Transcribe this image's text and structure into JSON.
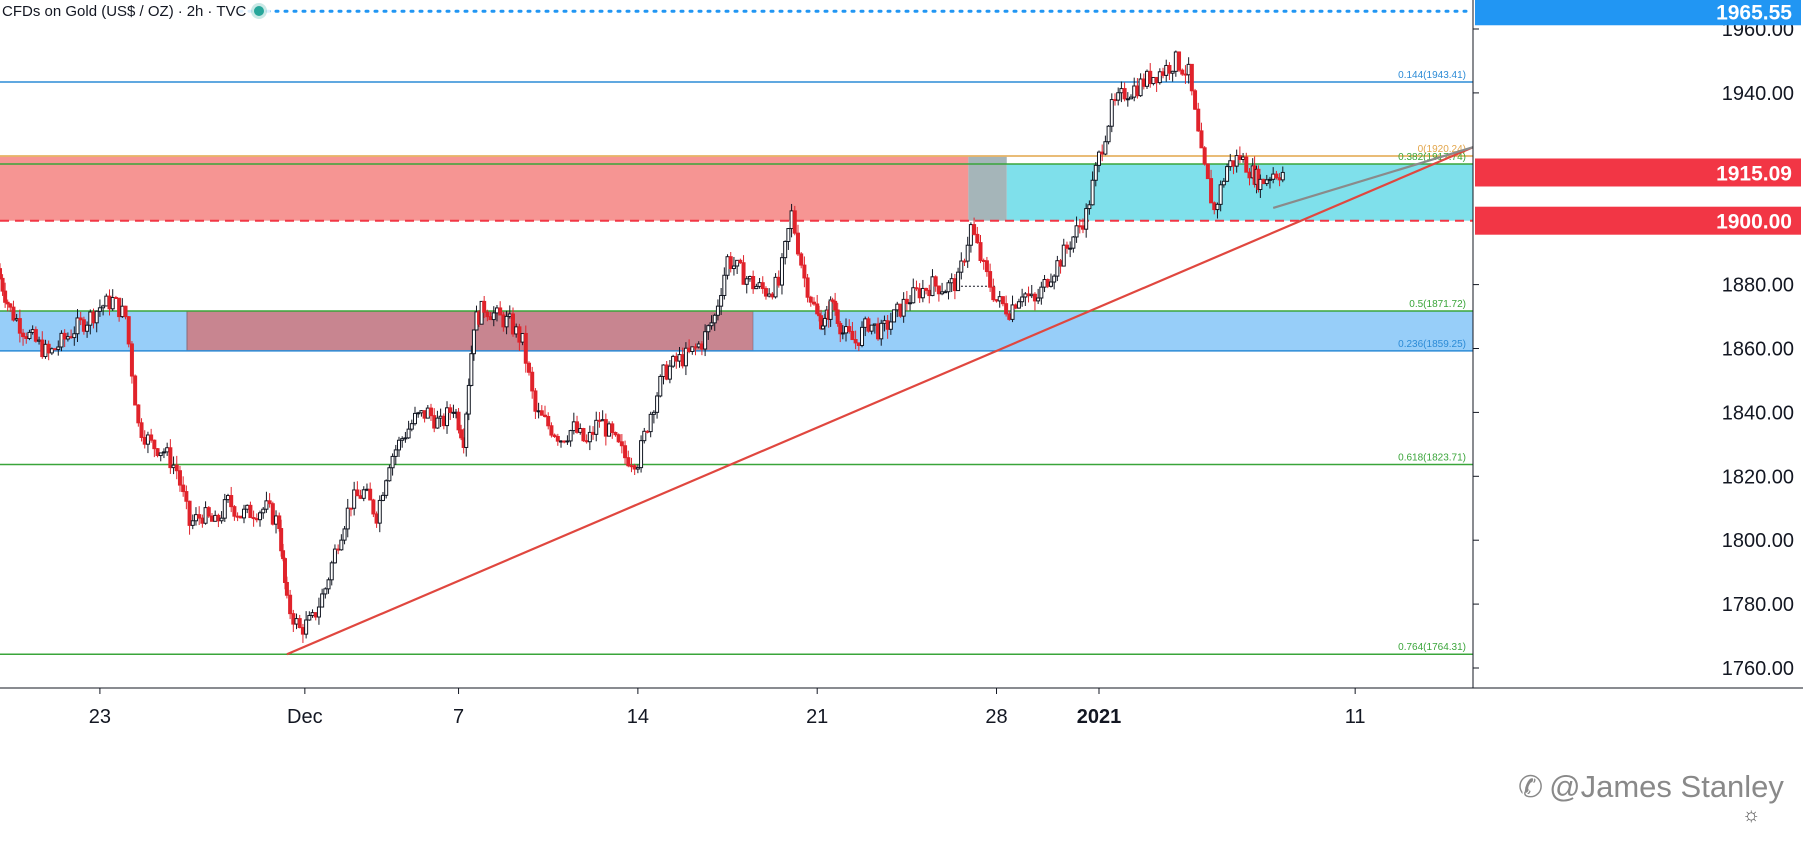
{
  "header": {
    "symbol": "CFDs on Gold (US$ / OZ)",
    "interval": "2h",
    "source": "TVC"
  },
  "watermark": {
    "text": "@James Stanley",
    "icon": "twitter-icon"
  },
  "settings_icon": "gear-icon",
  "colors": {
    "candle_up": "#131722",
    "candle_down": "#e0232b",
    "trendline": "#e0473f",
    "resistance_zone": "#f47a78",
    "support_zone": "#7dc2f7",
    "upper_zone_cyan": "#5fd8e6",
    "fib_green": "#3aa53a",
    "fib_blue": "#2c8bd6",
    "price_label_red": "#f23645",
    "price_label_blue": "#2196f3"
  },
  "chart_data": {
    "type": "candlestick",
    "title": "CFDs on Gold (US$ / OZ) · 2h · TVC",
    "ylim": [
      1760,
      1970
    ],
    "y_ticks": [
      "1760.00",
      "1780.00",
      "1800.00",
      "1820.00",
      "1840.00",
      "1860.00",
      "1880.00",
      "1900.00",
      "1915.09",
      "1940.00",
      "1960.00",
      "1965.55"
    ],
    "x_ticks": [
      {
        "label": "23",
        "day": 0
      },
      {
        "label": "Dec",
        "day": 8
      },
      {
        "label": "7",
        "day": 14
      },
      {
        "label": "14",
        "day": 21
      },
      {
        "label": "21",
        "day": 28
      },
      {
        "label": "28",
        "day": 35
      },
      {
        "label": "2021",
        "day": 39
      },
      {
        "label": "11",
        "day": 49
      }
    ],
    "x_range_days": [
      -3.9,
      53.6
    ],
    "price_labels": [
      {
        "value": "1965.55",
        "price": 1965.55,
        "color": "#2196f3",
        "kind": "dotted"
      },
      {
        "value": "1915.09",
        "price": 1915.09,
        "color": "#f23645",
        "kind": "last"
      },
      {
        "value": "1900.00",
        "price": 1900.0,
        "color": "#f23645",
        "kind": "dashed"
      }
    ],
    "fib_levels": [
      {
        "label": "0.144(1943.41)",
        "price": 1943.41,
        "color": "#2c8bd6"
      },
      {
        "label": "0(1920.24)",
        "price": 1920.24,
        "color": "#e2a54a"
      },
      {
        "label": "0.382(1917.74)",
        "price": 1917.74,
        "color": "#3aa53a"
      },
      {
        "label": "0.5(1871.72)",
        "price": 1871.72,
        "color": "#3aa53a"
      },
      {
        "label": "0.236(1859.25)",
        "price": 1859.25,
        "color": "#2c8bd6"
      },
      {
        "label": "0.618(1823.71)",
        "price": 1823.71,
        "color": "#3aa53a"
      },
      {
        "label": "0.764(1764.31)",
        "price": 1764.31,
        "color": "#3aa53a"
      }
    ],
    "zones": [
      {
        "name": "resistance",
        "from_day": -3.9,
        "to_day": 33.9,
        "low": 1900.0,
        "high": 1920.0,
        "color": "#f47a78"
      },
      {
        "name": "resistance-overlap",
        "from_day": 33.9,
        "to_day": 35.4,
        "low": 1900.0,
        "high": 1920.0,
        "color": "#8fa3a8"
      },
      {
        "name": "support-high",
        "from_day": 35.4,
        "to_day": 53.6,
        "low": 1900.0,
        "high": 1917.74,
        "color": "#5fd8e6"
      },
      {
        "name": "support-left",
        "from_day": -3.9,
        "to_day": 3.4,
        "low": 1859.25,
        "high": 1871.72,
        "color": "#7dc2f7"
      },
      {
        "name": "support-mid",
        "from_day": 3.4,
        "to_day": 25.5,
        "low": 1859.25,
        "high": 1871.72,
        "color": "#c57e8a"
      },
      {
        "name": "support-right",
        "from_day": 25.5,
        "to_day": 53.6,
        "low": 1859.25,
        "high": 1871.72,
        "color": "#7dc2f7"
      }
    ],
    "trendline": {
      "x": [
        7.3,
        53.6
      ],
      "y": [
        1764.31,
        1923.0
      ]
    },
    "series": [
      {
        "name": "close",
        "x": [
          -3.9,
          -3.5,
          -3.0,
          -2.5,
          -2.0,
          -1.5,
          -1.0,
          -0.5,
          0.0,
          0.5,
          1.0,
          1.5,
          2.0,
          2.5,
          3.0,
          3.5,
          4.0,
          4.5,
          5.0,
          5.5,
          6.0,
          6.5,
          7.0,
          7.3,
          7.8,
          8.3,
          8.8,
          9.3,
          9.8,
          10.3,
          10.8,
          11.3,
          11.8,
          12.3,
          12.8,
          13.3,
          13.8,
          14.2,
          14.6,
          15.0,
          15.5,
          16.0,
          16.5,
          17.0,
          17.5,
          18.0,
          18.5,
          19.0,
          19.5,
          20.0,
          20.5,
          21.0,
          21.5,
          22.0,
          22.5,
          23.0,
          23.5,
          24.0,
          24.5,
          25.0,
          25.5,
          26.0,
          26.5,
          27.0,
          27.5,
          28.0,
          28.3,
          28.6,
          29.0,
          29.5,
          30.0,
          30.5,
          31.0,
          31.5,
          32.0,
          32.5,
          33.0,
          33.5,
          34.0,
          34.5,
          35.0,
          35.5,
          36.0,
          36.5,
          37.0,
          37.5,
          38.0,
          38.5,
          39.0,
          39.5,
          40.0,
          40.5,
          41.0,
          41.5,
          42.0,
          42.5,
          43.0,
          43.5,
          44.0,
          44.5,
          45.0,
          45.3,
          45.8
        ],
        "y": [
          1882,
          1872,
          1866,
          1862,
          1858,
          1862,
          1866,
          1869,
          1873,
          1875,
          1870,
          1836,
          1830,
          1828,
          1822,
          1805,
          1808,
          1805,
          1812,
          1808,
          1809,
          1810,
          1805,
          1780,
          1772,
          1775,
          1785,
          1800,
          1812,
          1815,
          1808,
          1825,
          1832,
          1838,
          1840,
          1836,
          1842,
          1832,
          1868,
          1873,
          1870,
          1868,
          1862,
          1840,
          1836,
          1832,
          1835,
          1830,
          1838,
          1832,
          1826,
          1825,
          1840,
          1852,
          1856,
          1858,
          1862,
          1870,
          1888,
          1884,
          1880,
          1878,
          1880,
          1902,
          1882,
          1870,
          1868,
          1875,
          1865,
          1862,
          1868,
          1865,
          1870,
          1875,
          1878,
          1880,
          1879,
          1881,
          1898,
          1885,
          1875,
          1872,
          1878,
          1874,
          1882,
          1888,
          1895,
          1902,
          1920,
          1935,
          1940,
          1942,
          1945,
          1947,
          1950,
          1946,
          1920,
          1903,
          1917,
          1920,
          1915,
          1912,
          1915.09
        ]
      }
    ],
    "annotation_line": {
      "x": [
        33.3,
        35.0
      ],
      "y": 1879.5,
      "style": "dashed"
    }
  }
}
